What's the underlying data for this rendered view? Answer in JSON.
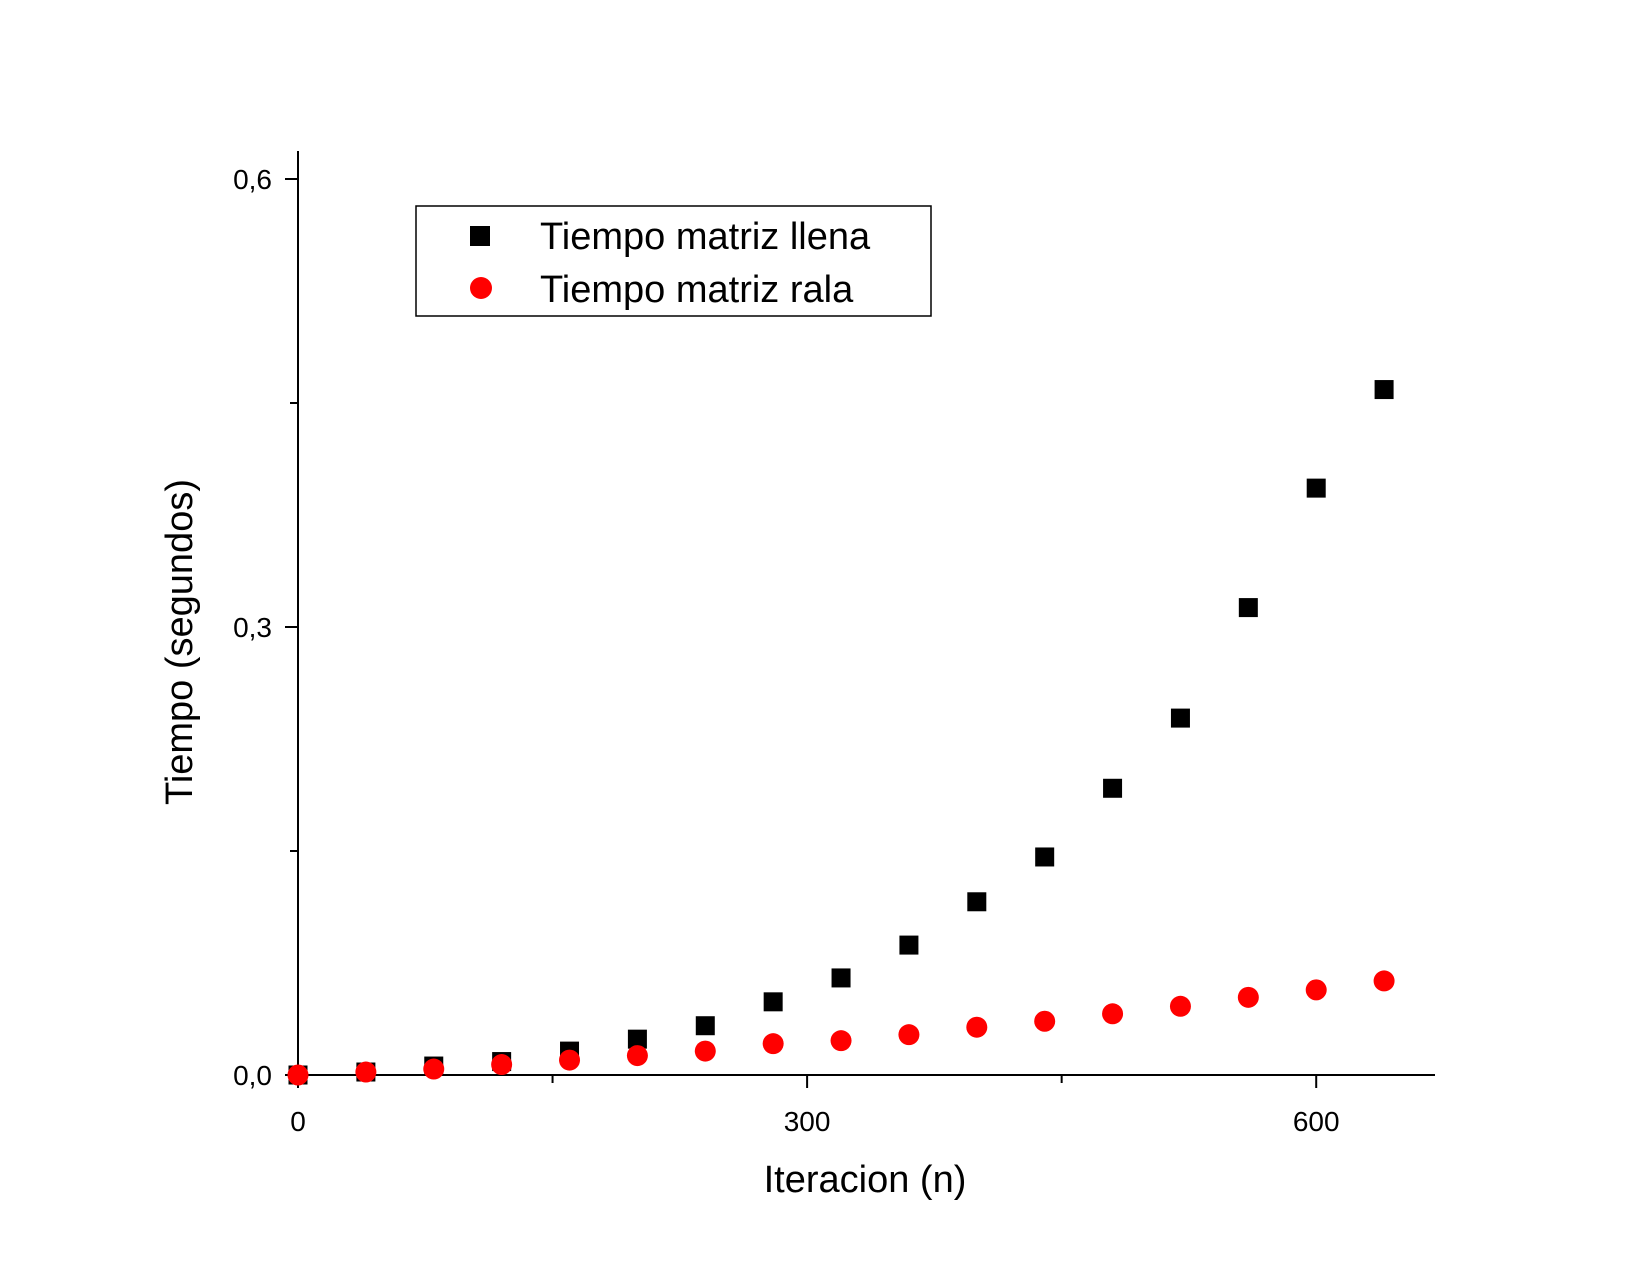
{
  "chart_data": {
    "type": "scatter",
    "title": "",
    "xlabel": "Iteracion (n)",
    "ylabel": "Tiempo (segundos)",
    "xlim": [
      0,
      670
    ],
    "ylim": [
      0,
      0.6
    ],
    "x_ticks": [
      0,
      300,
      600
    ],
    "x_tick_labels": [
      "0",
      "300",
      "600"
    ],
    "x_minor_ticks": [
      150,
      450
    ],
    "y_ticks": [
      0,
      0.3,
      0.6
    ],
    "y_tick_labels": [
      "0,0",
      "0,3",
      "0,6"
    ],
    "y_minor_ticks": [
      0.15,
      0.45
    ],
    "grid": false,
    "legend_position": "top-left",
    "series": [
      {
        "name": "Tiempo matriz llena",
        "marker": "square",
        "color": "#000000",
        "x": [
          0,
          40,
          80,
          120,
          160,
          200,
          240,
          280,
          320,
          360,
          400,
          440,
          480,
          520,
          560,
          600,
          640
        ],
        "y": [
          0.0,
          0.002,
          0.006,
          0.009,
          0.016,
          0.024,
          0.033,
          0.049,
          0.065,
          0.087,
          0.116,
          0.146,
          0.192,
          0.239,
          0.313,
          0.393,
          0.459
        ]
      },
      {
        "name": "Tiempo matriz rala",
        "marker": "circle",
        "color": "#ff0000",
        "x": [
          0,
          40,
          80,
          120,
          160,
          200,
          240,
          280,
          320,
          360,
          400,
          440,
          480,
          520,
          560,
          600,
          640
        ],
        "y": [
          0.0,
          0.002,
          0.004,
          0.007,
          0.01,
          0.013,
          0.016,
          0.021,
          0.023,
          0.027,
          0.032,
          0.036,
          0.041,
          0.046,
          0.052,
          0.057,
          0.063
        ]
      }
    ]
  }
}
